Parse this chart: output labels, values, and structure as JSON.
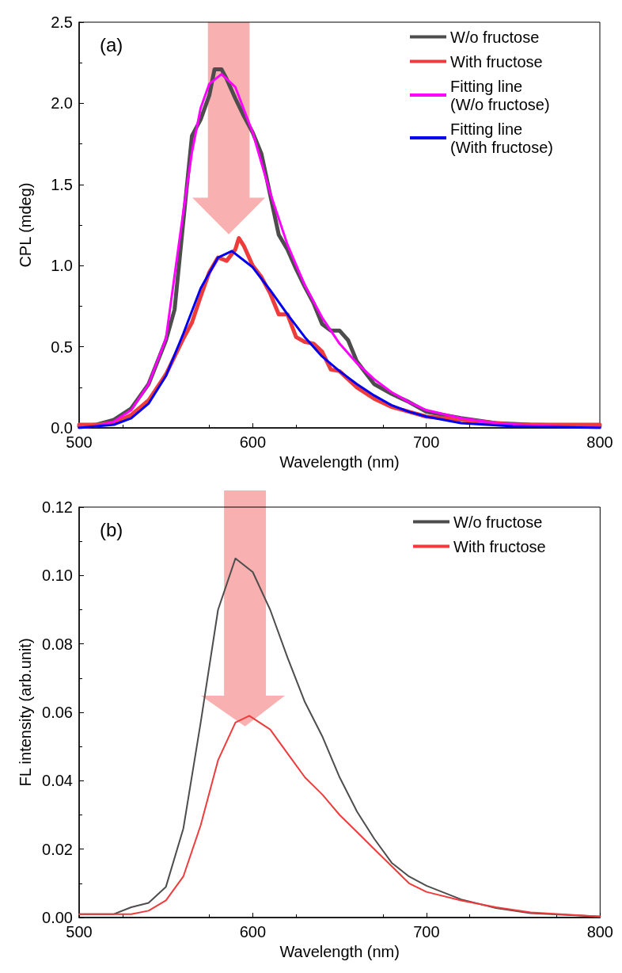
{
  "chart_data": [
    {
      "type": "line",
      "xlabel": "Wavelength (nm)",
      "ylabel": "CPL (mdeg)",
      "annotations": [
        "(a)"
      ],
      "xlim": [
        500,
        800
      ],
      "xticks": [
        500,
        600,
        700,
        800
      ],
      "ylim": [
        0,
        2.5
      ],
      "yticks": [
        {
          "value": 0,
          "label": "0.0"
        },
        0.5,
        {
          "value": 1,
          "label": "1.0"
        },
        1.5,
        {
          "value": 2,
          "label": "2.0"
        },
        2.5
      ],
      "grid": false,
      "legend": "top right",
      "marker": "none",
      "line_style": "solid",
      "series": [
        {
          "name": "W/o fructose",
          "color": "#4d4d4d",
          "x": [
            500,
            510,
            520,
            530,
            540,
            550,
            555,
            560,
            565,
            570,
            575,
            578,
            582,
            585,
            590,
            595,
            600,
            605,
            610,
            615,
            620,
            625,
            630,
            635,
            640,
            645,
            650,
            655,
            660,
            670,
            680,
            690,
            700,
            720,
            740,
            760,
            800
          ],
          "values": [
            0.01,
            0.02,
            0.05,
            0.12,
            0.27,
            0.54,
            0.73,
            1.27,
            1.8,
            1.9,
            2.05,
            2.21,
            2.21,
            2.15,
            2.03,
            1.92,
            1.82,
            1.69,
            1.44,
            1.19,
            1.1,
            0.98,
            0.87,
            0.77,
            0.64,
            0.6,
            0.6,
            0.54,
            0.41,
            0.27,
            0.21,
            0.16,
            0.1,
            0.06,
            0.03,
            0.02,
            0.01
          ]
        },
        {
          "name": "With fructose",
          "color": "#ee3b3b",
          "x": [
            500,
            510,
            520,
            530,
            540,
            550,
            560,
            565,
            570,
            575,
            580,
            585,
            590,
            592,
            595,
            600,
            605,
            610,
            615,
            620,
            625,
            630,
            635,
            640,
            645,
            650,
            655,
            660,
            670,
            680,
            690,
            700,
            720,
            750,
            800
          ],
          "values": [
            0.02,
            0.02,
            0.03,
            0.08,
            0.17,
            0.33,
            0.55,
            0.65,
            0.81,
            0.96,
            1.05,
            1.03,
            1.1,
            1.17,
            1.12,
            1.0,
            0.93,
            0.83,
            0.7,
            0.7,
            0.56,
            0.53,
            0.52,
            0.47,
            0.36,
            0.35,
            0.3,
            0.25,
            0.18,
            0.13,
            0.1,
            0.07,
            0.05,
            0.02,
            0.02
          ]
        },
        {
          "name": "Fitting line\n(W/o fructose)",
          "color": "#ff00ff",
          "x": [
            500,
            510,
            520,
            530,
            540,
            550,
            560,
            565,
            570,
            575,
            582,
            590,
            600,
            610,
            620,
            630,
            640,
            650,
            660,
            670,
            680,
            690,
            700,
            720,
            740,
            760,
            800
          ],
          "values": [
            0.0,
            0.01,
            0.04,
            0.11,
            0.27,
            0.55,
            1.33,
            1.7,
            1.97,
            2.12,
            2.18,
            2.1,
            1.82,
            1.45,
            1.13,
            0.88,
            0.68,
            0.52,
            0.4,
            0.3,
            0.22,
            0.16,
            0.11,
            0.06,
            0.03,
            0.015,
            0.0
          ]
        },
        {
          "name": "Fitting line\n(With fructose)",
          "color": "#0000ee",
          "x": [
            500,
            520,
            530,
            540,
            550,
            560,
            570,
            580,
            588,
            600,
            610,
            620,
            630,
            640,
            650,
            660,
            670,
            680,
            690,
            700,
            720,
            750,
            800
          ],
          "values": [
            0.0,
            0.02,
            0.06,
            0.15,
            0.32,
            0.58,
            0.86,
            1.05,
            1.09,
            0.99,
            0.85,
            0.7,
            0.56,
            0.44,
            0.35,
            0.27,
            0.2,
            0.14,
            0.1,
            0.07,
            0.03,
            0.01,
            0.0
          ]
        }
      ]
    },
    {
      "type": "line",
      "xlabel": "Wavelength (nm)",
      "ylabel": "FL intensity (arb.unit)",
      "annotations": [
        "(b)"
      ],
      "xlim": [
        500,
        800
      ],
      "xticks": [
        500,
        600,
        700,
        800
      ],
      "ylim": [
        0,
        0.12
      ],
      "yticks": [
        {
          "value": 0,
          "label": "0.00"
        },
        {
          "value": 0.02,
          "label": "0.02"
        },
        {
          "value": 0.04,
          "label": "0.04"
        },
        {
          "value": 0.06,
          "label": "0.06"
        },
        {
          "value": 0.08,
          "label": "0.08"
        },
        {
          "value": 0.1,
          "label": "0.10"
        },
        {
          "value": 0.12,
          "label": "0.12"
        }
      ],
      "grid": false,
      "legend": "top right",
      "marker": "none",
      "line_style": "solid",
      "series": [
        {
          "name": "W/o fructose",
          "color": "#4d4d4d",
          "x": [
            500,
            520,
            530,
            540,
            550,
            560,
            570,
            580,
            590,
            600,
            610,
            620,
            630,
            640,
            650,
            660,
            670,
            680,
            690,
            700,
            720,
            740,
            760,
            800
          ],
          "values": [
            0.001,
            0.001,
            0.003,
            0.0043,
            0.009,
            0.026,
            0.057,
            0.09,
            0.105,
            0.101,
            0.09,
            0.076,
            0.063,
            0.053,
            0.041,
            0.031,
            0.023,
            0.016,
            0.012,
            0.0093,
            0.0053,
            0.0028,
            0.0013,
            0.0003
          ]
        },
        {
          "name": "With fructose",
          "color": "#ee3b3b",
          "x": [
            500,
            530,
            540,
            550,
            560,
            570,
            580,
            590,
            598,
            610,
            620,
            630,
            640,
            650,
            660,
            670,
            680,
            690,
            700,
            720,
            740,
            760,
            800
          ],
          "values": [
            0.001,
            0.001,
            0.002,
            0.005,
            0.012,
            0.027,
            0.046,
            0.057,
            0.059,
            0.055,
            0.048,
            0.041,
            0.036,
            0.03,
            0.025,
            0.02,
            0.015,
            0.01,
            0.0075,
            0.005,
            0.003,
            0.0015,
            0.0003
          ]
        }
      ]
    }
  ]
}
